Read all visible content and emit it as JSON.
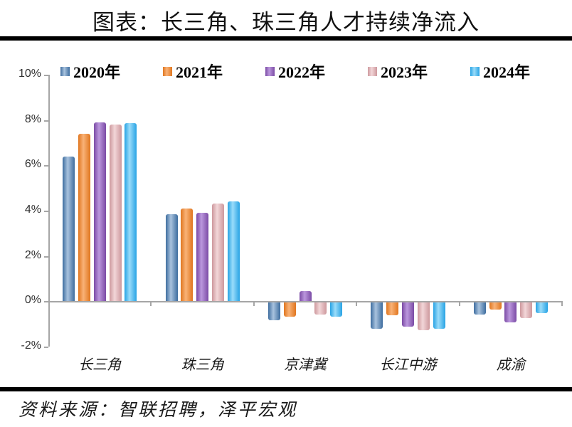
{
  "title": "图表：长三角、珠三角人才持续净流入",
  "source": "资料来源：智联招聘，泽平宏观",
  "chart_data": {
    "type": "bar",
    "title": "图表：长三角、珠三角人才持续净流入",
    "categories": [
      "长三角",
      "珠三角",
      "京津冀",
      "长江中游",
      "成渝"
    ],
    "series": [
      {
        "name": "2020年",
        "color_dark": "#3e6d9f",
        "color_light": "#a9c3de",
        "values": [
          6.4,
          3.85,
          -0.8,
          -1.2,
          -0.55
        ]
      },
      {
        "name": "2021年",
        "color_dark": "#e0761f",
        "color_light": "#f9b277",
        "values": [
          7.4,
          4.1,
          -0.65,
          -0.6,
          -0.35
        ]
      },
      {
        "name": "2022年",
        "color_dark": "#7b4ba5",
        "color_light": "#bb97dd",
        "values": [
          7.9,
          3.9,
          0.45,
          -1.1,
          -0.9
        ]
      },
      {
        "name": "2023年",
        "color_dark": "#cd989d",
        "color_light": "#f2d6d8",
        "values": [
          7.8,
          4.3,
          -0.55,
          -1.25,
          -0.7
        ]
      },
      {
        "name": "2024年",
        "color_dark": "#28a3e4",
        "color_light": "#9adcfa",
        "values": [
          7.85,
          4.4,
          -0.65,
          -1.2,
          -0.5
        ]
      }
    ],
    "y_ticks": [
      {
        "label": "10%",
        "value": 10
      },
      {
        "label": "8%",
        "value": 8
      },
      {
        "label": "6%",
        "value": 6
      },
      {
        "label": "4%",
        "value": 4
      },
      {
        "label": "2%",
        "value": 2
      },
      {
        "label": "0%",
        "value": 0
      },
      {
        "label": "-2%",
        "value": -2
      }
    ],
    "ylim": [
      -2,
      10
    ],
    "xlabel": "",
    "ylabel": "",
    "legend_position": "top",
    "grid": false,
    "axis_color": "#a6a6a6"
  }
}
